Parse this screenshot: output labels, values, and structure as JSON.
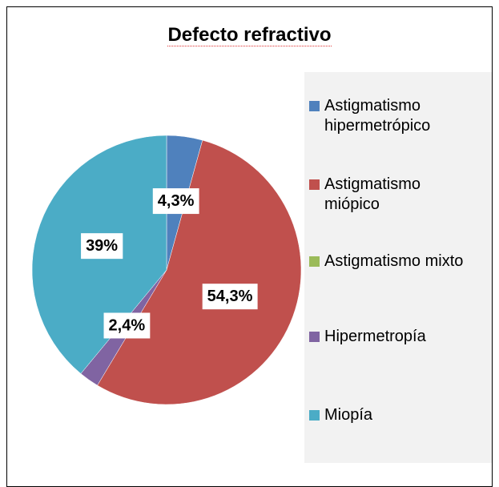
{
  "chart_data": {
    "type": "pie",
    "title": "Defecto refractivo",
    "categories": [
      "Astigmatismo hipermetrópico",
      "Astigmatismo miópico",
      "Astigmatismo mixto",
      "Hipermetropía",
      "Miopía"
    ],
    "values": [
      4.3,
      54.3,
      0,
      2.4,
      39
    ],
    "value_labels": [
      "4,3%",
      "54,3%",
      null,
      "2,4%",
      "39%"
    ],
    "colors": [
      "#4f81bd",
      "#c0504d",
      "#9bbb59",
      "#8064a2",
      "#4bacc6"
    ],
    "legend": "right"
  }
}
